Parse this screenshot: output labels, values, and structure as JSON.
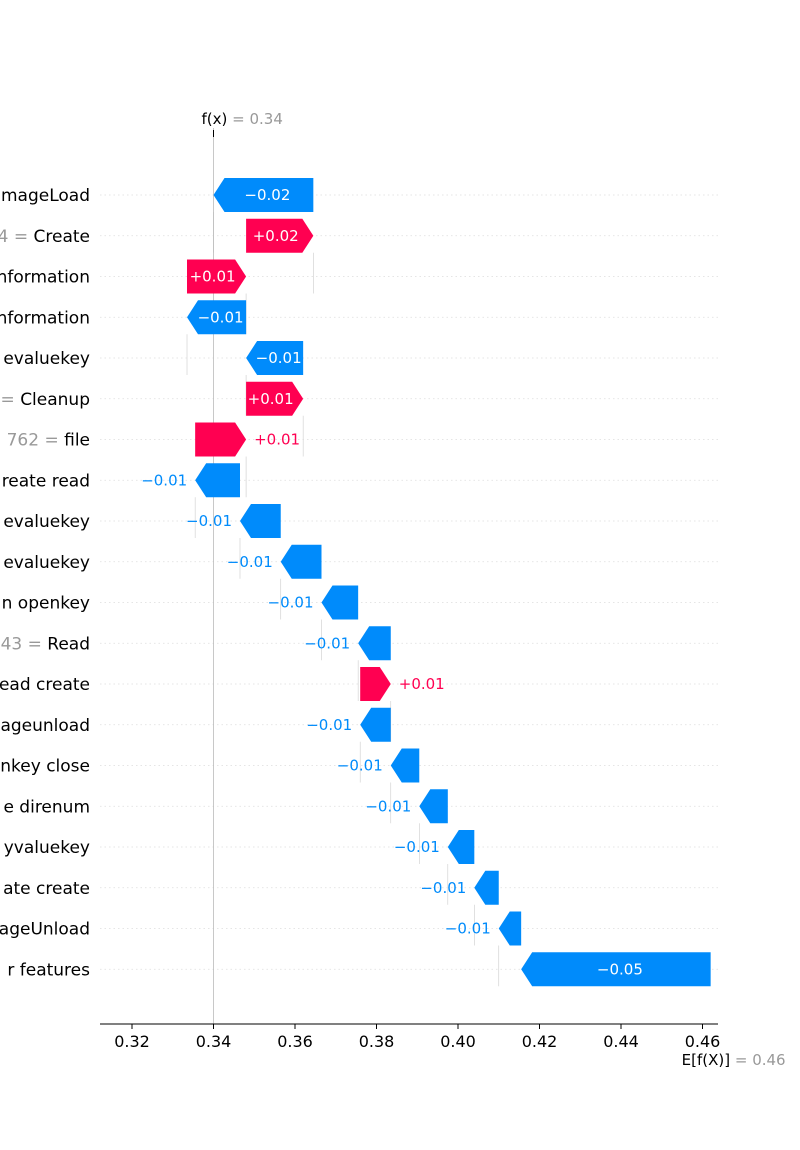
{
  "chart_data": {
    "type": "waterfall",
    "title": "",
    "fx": {
      "label": "f(x)",
      "equals": " = ",
      "value": 0.34,
      "value_label": "0.34"
    },
    "base": {
      "label": "E[f(X)]",
      "equals": " = ",
      "value": 0.462,
      "value_label": "0.46"
    },
    "xlim": [
      0.312,
      0.4625
    ],
    "xticks": [
      0.32,
      0.34,
      0.36,
      0.38,
      0.4,
      0.42,
      0.44,
      0.46
    ],
    "xtick_labels": [
      "0.32",
      "0.34",
      "0.36",
      "0.38",
      "0.40",
      "0.42",
      "0.44",
      "0.46"
    ],
    "colors": {
      "positive": "#ff0051",
      "negative": "#008bfb",
      "grey": "#999999"
    },
    "features": [
      {
        "value_text": "",
        "name": "mageLoad",
        "start": 0.3645,
        "end": 0.34,
        "label": "−0.02"
      },
      {
        "value_text": "4 = ",
        "name": "Create",
        "start": 0.348,
        "end": 0.3645,
        "label": "+0.02"
      },
      {
        "value_text": "",
        "name": "nformation",
        "start": 0.3335,
        "end": 0.348,
        "label": "+0.01"
      },
      {
        "value_text": "",
        "name": "nformation",
        "start": 0.348,
        "end": 0.3335,
        "label": "−0.01"
      },
      {
        "value_text": "",
        "name": "evaluekey",
        "start": 0.362,
        "end": 0.348,
        "label": "−0.01"
      },
      {
        "value_text": "= ",
        "name": "Cleanup",
        "start": 0.348,
        "end": 0.362,
        "label": "+0.01"
      },
      {
        "value_text": "762 = ",
        "name": "file",
        "start": 0.3355,
        "end": 0.348,
        "label": "+0.01"
      },
      {
        "value_text": "",
        "name": "reate read",
        "start": 0.3465,
        "end": 0.3355,
        "label": "−0.01"
      },
      {
        "value_text": "",
        "name": "evaluekey",
        "start": 0.3565,
        "end": 0.3465,
        "label": "−0.01"
      },
      {
        "value_text": "",
        "name": "evaluekey",
        "start": 0.3665,
        "end": 0.3565,
        "label": "−0.01"
      },
      {
        "value_text": "",
        "name": "n openkey",
        "start": 0.3755,
        "end": 0.3665,
        "label": "−0.01"
      },
      {
        "value_text": "43 = ",
        "name": "Read",
        "start": 0.3835,
        "end": 0.3755,
        "label": "−0.01"
      },
      {
        "value_text": "",
        "name": "ead create",
        "start": 0.376,
        "end": 0.3835,
        "label": "+0.01"
      },
      {
        "value_text": "",
        "name": "ageunload",
        "start": 0.3835,
        "end": 0.376,
        "label": "−0.01"
      },
      {
        "value_text": "",
        "name": "nkey close",
        "start": 0.3905,
        "end": 0.3835,
        "label": "−0.01"
      },
      {
        "value_text": "",
        "name": "e direnum",
        "start": 0.3975,
        "end": 0.3905,
        "label": "−0.01"
      },
      {
        "value_text": "",
        "name": "yvaluekey",
        "start": 0.404,
        "end": 0.3975,
        "label": "−0.01"
      },
      {
        "value_text": "",
        "name": "ate create",
        "start": 0.41,
        "end": 0.404,
        "label": "−0.01"
      },
      {
        "value_text": "",
        "name": "ageUnload",
        "start": 0.4155,
        "end": 0.41,
        "label": "−0.01"
      },
      {
        "value_text": "",
        "name": "r features",
        "start": 0.462,
        "end": 0.4155,
        "label": "−0.05"
      }
    ]
  }
}
